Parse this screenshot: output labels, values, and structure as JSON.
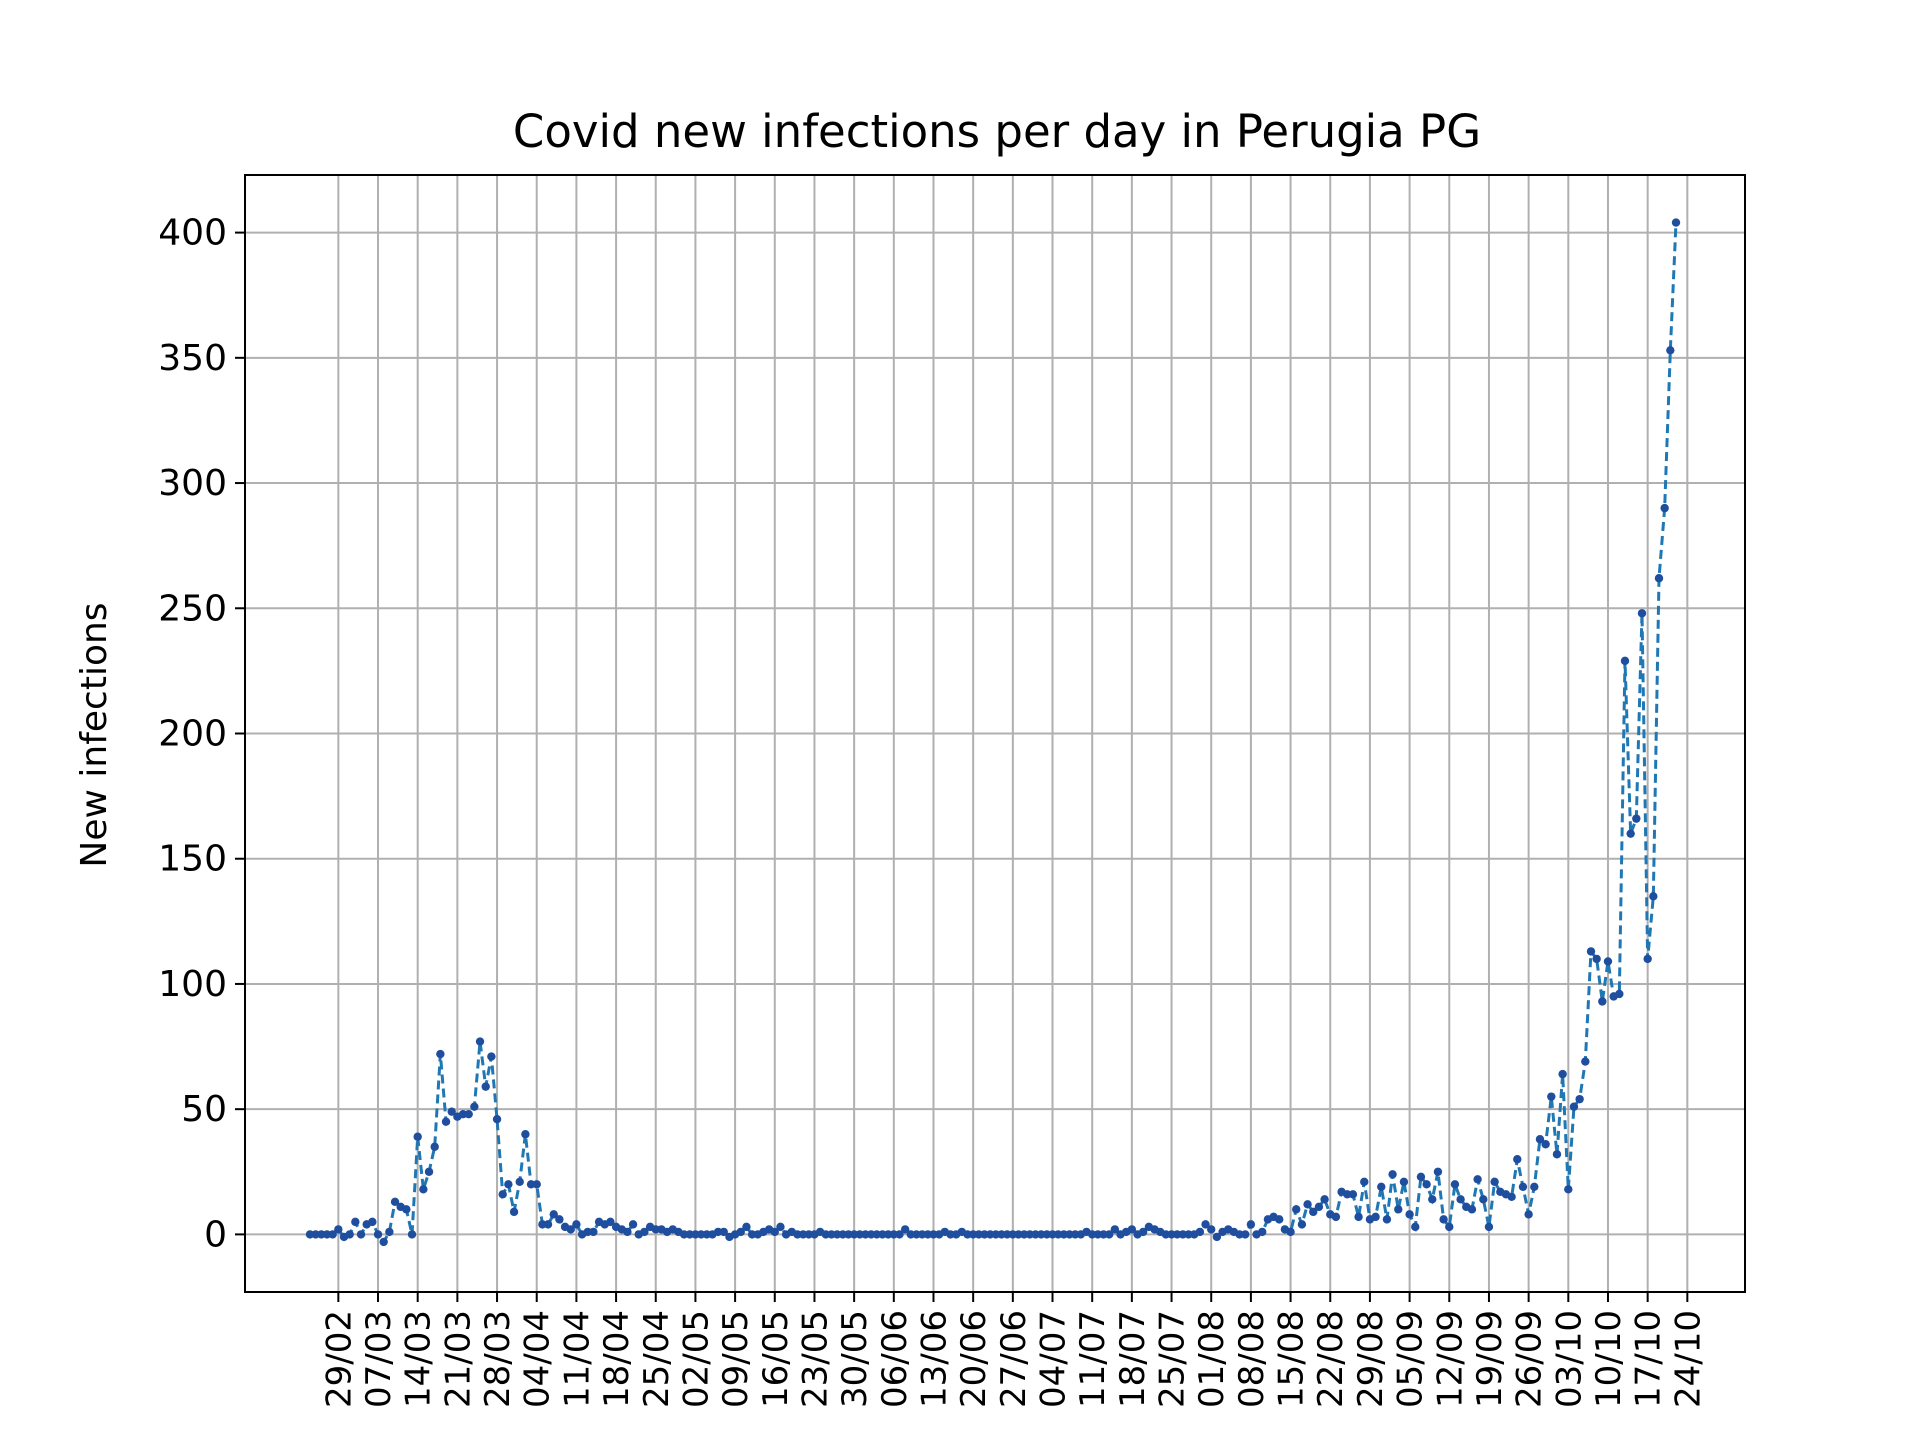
{
  "chart_data": {
    "type": "line",
    "title": "Covid new infections per day in Perugia PG",
    "xlabel": "",
    "ylabel": "New infections",
    "ylim": [
      -23,
      423
    ],
    "yticks": [
      0,
      50,
      100,
      150,
      200,
      250,
      300,
      350,
      400
    ],
    "grid": true,
    "colors": {
      "line": "#1f77b4",
      "marker": "#1f4e9e",
      "grid": "#b0b0b0"
    },
    "line_style": "dashed",
    "marker": "dot",
    "start_date": "2020-02-24",
    "xticks": [
      "29/02",
      "07/03",
      "14/03",
      "21/03",
      "28/03",
      "04/04",
      "11/04",
      "18/04",
      "25/04",
      "02/05",
      "09/05",
      "16/05",
      "23/05",
      "30/05",
      "06/06",
      "13/06",
      "20/06",
      "27/06",
      "04/07",
      "11/07",
      "18/07",
      "25/07",
      "01/08",
      "08/08",
      "15/08",
      "22/08",
      "29/08",
      "05/09",
      "12/09",
      "19/09",
      "26/09",
      "03/10",
      "10/10",
      "17/10",
      "24/10"
    ],
    "values": [
      0,
      0,
      0,
      0,
      0,
      2,
      -1,
      0,
      5,
      0,
      4,
      5,
      0,
      -3,
      1,
      13,
      11,
      10,
      0,
      39,
      18,
      25,
      35,
      72,
      45,
      49,
      47,
      48,
      48,
      51,
      77,
      59,
      71,
      46,
      16,
      20,
      9,
      21,
      40,
      20,
      20,
      4,
      4,
      8,
      6,
      3,
      2,
      4,
      0,
      1,
      1,
      5,
      4,
      5,
      3,
      2,
      1,
      4,
      0,
      1,
      3,
      2,
      2,
      1,
      2,
      1,
      0,
      0,
      0,
      0,
      0,
      0,
      1,
      1,
      -1,
      0,
      1,
      3,
      0,
      0,
      1,
      2,
      1,
      3,
      0,
      1,
      0,
      0,
      0,
      0,
      1,
      0,
      0,
      0,
      0,
      0,
      0,
      0,
      0,
      0,
      0,
      0,
      0,
      0,
      0,
      2,
      0,
      0,
      0,
      0,
      0,
      0,
      1,
      0,
      0,
      1,
      0,
      0,
      0,
      0,
      0,
      0,
      0,
      0,
      0,
      0,
      0,
      0,
      0,
      0,
      0,
      0,
      0,
      0,
      0,
      0,
      0,
      1,
      0,
      0,
      0,
      0,
      2,
      0,
      1,
      2,
      0,
      1,
      3,
      2,
      1,
      0,
      0,
      0,
      0,
      0,
      0,
      1,
      4,
      2,
      -1,
      1,
      2,
      1,
      0,
      0,
      4,
      0,
      1,
      6,
      7,
      6,
      2,
      1,
      10,
      4,
      12,
      9,
      11,
      14,
      8,
      7,
      17,
      16,
      16,
      7,
      21,
      6,
      7,
      19,
      6,
      24,
      10,
      21,
      8,
      3,
      23,
      20,
      14,
      25,
      6,
      3,
      20,
      14,
      11,
      10,
      22,
      14,
      3,
      21,
      17,
      16,
      15,
      30,
      19,
      8,
      19,
      38,
      36,
      55,
      32,
      64,
      18,
      51,
      54,
      69,
      113,
      110,
      93,
      109,
      95,
      96,
      229,
      160,
      166,
      248,
      110,
      135,
      262,
      290,
      353,
      404
    ]
  }
}
